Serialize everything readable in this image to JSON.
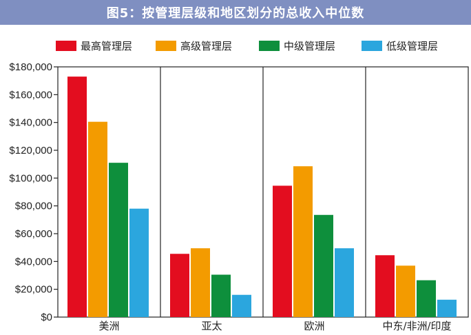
{
  "title": "图5：按管理层级和地区划分的总收入中位数",
  "colors": {
    "title_bar": "#7f8fc1",
    "series": [
      "#e30d1f",
      "#f39b00",
      "#0e8f3c",
      "#2ba6de"
    ]
  },
  "chart_data": {
    "type": "bar",
    "categories": [
      "美洲",
      "亚太",
      "欧洲",
      "中东/非洲/印度"
    ],
    "series": [
      {
        "name": "最高管理层",
        "values": [
          173000,
          45500,
          94500,
          44500
        ]
      },
      {
        "name": "高级管理层",
        "values": [
          140500,
          49500,
          108500,
          37000
        ]
      },
      {
        "name": "中级管理层",
        "values": [
          111000,
          30500,
          73500,
          26500
        ]
      },
      {
        "name": "低级管理层",
        "values": [
          78000,
          16000,
          49500,
          12500
        ]
      }
    ],
    "ylim": [
      0,
      180000
    ],
    "yticks": [
      "$0",
      "$20,000",
      "$40,000",
      "$60,000",
      "$80,000",
      "$100,000",
      "$120,000",
      "$140,000",
      "$160,000",
      "$180,000"
    ],
    "grid": false,
    "legend_position": "top"
  }
}
